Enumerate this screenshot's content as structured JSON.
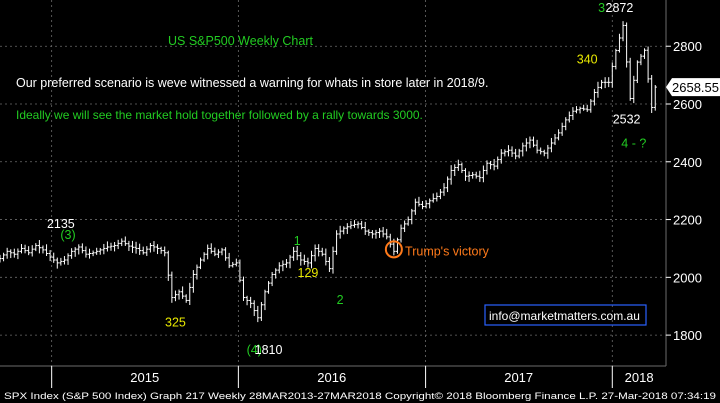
{
  "chart_data": {
    "type": "ohlc",
    "title": "US S&P500 Weekly Chart",
    "notes": [
      "Our preferred scenario is weve witnessed a warning for whats in store later in 2018/9.",
      "Ideally we will see the market hold together followed by a rally towards 3000."
    ],
    "y_ticks": [
      1800,
      2000,
      2200,
      2400,
      2600,
      2800
    ],
    "ylim": [
      1700,
      2960
    ],
    "x_labels": [
      "2015",
      "2016",
      "2017",
      "2018"
    ],
    "xlim": [
      "2014-09-22",
      "2018-04-16"
    ],
    "last_price": "2658.55",
    "series": [
      {
        "name": "SPX Index",
        "points": [
          {
            "x": "2014-09-22",
            "y": 2065
          },
          {
            "x": "2014-10-06",
            "y": 2090
          },
          {
            "x": "2014-10-20",
            "y": 2080
          },
          {
            "x": "2014-11-03",
            "y": 2100
          },
          {
            "x": "2014-11-17",
            "y": 2085
          },
          {
            "x": "2014-12-01",
            "y": 2110
          },
          {
            "x": "2014-12-15",
            "y": 2095
          },
          {
            "x": "2014-12-29",
            "y": 2070
          },
          {
            "x": "2015-01-12",
            "y": 2050
          },
          {
            "x": "2015-01-26",
            "y": 2060
          },
          {
            "x": "2015-02-09",
            "y": 2090
          },
          {
            "x": "2015-02-23",
            "y": 2105
          },
          {
            "x": "2015-03-09",
            "y": 2080
          },
          {
            "x": "2015-03-23",
            "y": 2085
          },
          {
            "x": "2015-04-06",
            "y": 2095
          },
          {
            "x": "2015-04-20",
            "y": 2105
          },
          {
            "x": "2015-05-04",
            "y": 2110
          },
          {
            "x": "2015-05-18",
            "y": 2125
          },
          {
            "x": "2015-06-01",
            "y": 2108
          },
          {
            "x": "2015-06-15",
            "y": 2100
          },
          {
            "x": "2015-06-29",
            "y": 2085
          },
          {
            "x": "2015-07-13",
            "y": 2110
          },
          {
            "x": "2015-07-27",
            "y": 2100
          },
          {
            "x": "2015-08-10",
            "y": 2085
          },
          {
            "x": "2015-08-24",
            "y": 1930
          },
          {
            "x": "2015-09-07",
            "y": 1950
          },
          {
            "x": "2015-09-21",
            "y": 1920
          },
          {
            "x": "2015-10-05",
            "y": 2010
          },
          {
            "x": "2015-10-19",
            "y": 2060
          },
          {
            "x": "2015-11-02",
            "y": 2100
          },
          {
            "x": "2015-11-16",
            "y": 2080
          },
          {
            "x": "2015-11-30",
            "y": 2095
          },
          {
            "x": "2015-12-14",
            "y": 2040
          },
          {
            "x": "2015-12-28",
            "y": 2050
          },
          {
            "x": "2016-01-11",
            "y": 1930
          },
          {
            "x": "2016-01-25",
            "y": 1910
          },
          {
            "x": "2016-02-08",
            "y": 1860
          },
          {
            "x": "2016-02-22",
            "y": 1950
          },
          {
            "x": "2016-03-07",
            "y": 2010
          },
          {
            "x": "2016-03-21",
            "y": 2040
          },
          {
            "x": "2016-04-04",
            "y": 2050
          },
          {
            "x": "2016-04-18",
            "y": 2090
          },
          {
            "x": "2016-05-02",
            "y": 2060
          },
          {
            "x": "2016-05-16",
            "y": 2050
          },
          {
            "x": "2016-05-30",
            "y": 2100
          },
          {
            "x": "2016-06-13",
            "y": 2080
          },
          {
            "x": "2016-06-27",
            "y": 2030
          },
          {
            "x": "2016-07-11",
            "y": 2150
          },
          {
            "x": "2016-07-25",
            "y": 2170
          },
          {
            "x": "2016-08-08",
            "y": 2180
          },
          {
            "x": "2016-08-22",
            "y": 2185
          },
          {
            "x": "2016-09-05",
            "y": 2160
          },
          {
            "x": "2016-09-19",
            "y": 2150
          },
          {
            "x": "2016-10-03",
            "y": 2160
          },
          {
            "x": "2016-10-17",
            "y": 2140
          },
          {
            "x": "2016-10-31",
            "y": 2090
          },
          {
            "x": "2016-11-14",
            "y": 2170
          },
          {
            "x": "2016-11-28",
            "y": 2200
          },
          {
            "x": "2016-12-12",
            "y": 2260
          },
          {
            "x": "2016-12-26",
            "y": 2245
          },
          {
            "x": "2017-01-09",
            "y": 2265
          },
          {
            "x": "2017-01-23",
            "y": 2280
          },
          {
            "x": "2017-02-06",
            "y": 2310
          },
          {
            "x": "2017-02-20",
            "y": 2370
          },
          {
            "x": "2017-03-06",
            "y": 2390
          },
          {
            "x": "2017-03-20",
            "y": 2350
          },
          {
            "x": "2017-04-03",
            "y": 2355
          },
          {
            "x": "2017-04-17",
            "y": 2345
          },
          {
            "x": "2017-05-01",
            "y": 2395
          },
          {
            "x": "2017-05-15",
            "y": 2385
          },
          {
            "x": "2017-05-29",
            "y": 2430
          },
          {
            "x": "2017-06-12",
            "y": 2440
          },
          {
            "x": "2017-06-26",
            "y": 2420
          },
          {
            "x": "2017-07-10",
            "y": 2455
          },
          {
            "x": "2017-07-24",
            "y": 2475
          },
          {
            "x": "2017-08-07",
            "y": 2440
          },
          {
            "x": "2017-08-21",
            "y": 2430
          },
          {
            "x": "2017-09-04",
            "y": 2465
          },
          {
            "x": "2017-09-18",
            "y": 2500
          },
          {
            "x": "2017-10-02",
            "y": 2545
          },
          {
            "x": "2017-10-16",
            "y": 2575
          },
          {
            "x": "2017-10-30",
            "y": 2585
          },
          {
            "x": "2017-11-13",
            "y": 2580
          },
          {
            "x": "2017-11-27",
            "y": 2640
          },
          {
            "x": "2017-12-11",
            "y": 2675
          },
          {
            "x": "2017-12-25",
            "y": 2675
          },
          {
            "x": "2018-01-08",
            "y": 2785
          },
          {
            "x": "2018-01-22",
            "y": 2872
          },
          {
            "x": "2018-02-05",
            "y": 2619
          },
          {
            "x": "2018-02-19",
            "y": 2745
          },
          {
            "x": "2018-03-05",
            "y": 2786
          },
          {
            "x": "2018-03-19",
            "y": 2588
          },
          {
            "x": "2018-03-26",
            "y": 2658.55
          }
        ]
      }
    ],
    "annotations": [
      {
        "text": "2135",
        "color": "#ffffff",
        "x": "2015-01-19",
        "y": 2170
      },
      {
        "text": "(3)",
        "color": "#22cc22",
        "x": "2015-02-02",
        "y": 2133
      },
      {
        "text": "325",
        "color": "#e8e800",
        "x": "2015-08-31",
        "y": 1830
      },
      {
        "text": "(4)",
        "color": "#22cc22",
        "x": "2016-02-01",
        "y": 1735
      },
      {
        "text": "1810",
        "color": "#ffffff",
        "x": "2016-02-29",
        "y": 1735
      },
      {
        "text": "129",
        "color": "#e8e800",
        "x": "2016-05-16",
        "y": 2002
      },
      {
        "text": "1",
        "color": "#22cc22",
        "x": "2016-04-25",
        "y": 2112
      },
      {
        "text": "2",
        "color": "#22cc22",
        "x": "2016-07-18",
        "y": 1908
      },
      {
        "text": "Trump's victory",
        "color": "#ff7a1a",
        "x": "2016-11-14",
        "y": 2075
      },
      {
        "text": "340",
        "color": "#e8e800",
        "x": "2017-11-13",
        "y": 2740
      },
      {
        "text": "3",
        "color": "#22cc22",
        "x": "2017-12-11",
        "y": 2918
      },
      {
        "text": "2872",
        "color": "#ffffff",
        "x": "2018-01-15",
        "y": 2918
      },
      {
        "text": "2532",
        "color": "#ffffff",
        "x": "2018-01-29",
        "y": 2532
      },
      {
        "text": "4 - ?",
        "color": "#22cc22",
        "x": "2018-02-12",
        "y": 2450
      }
    ],
    "markers": [
      {
        "type": "circle",
        "color": "#ff7a1a",
        "x": "2016-10-31",
        "y": 2090
      }
    ],
    "grid": true,
    "legend": "none"
  },
  "watermark": "info@marketmatters.com.au",
  "footer": "SPX Index (S&P 500 Index) Graph 217  Weekly 28MAR2013-27MAR2018  Copyright© 2018 Bloomberg Finance L.P.   27-Mar-2018 07:34:19",
  "colors": {
    "background": "#000000",
    "bars": "#ffffff",
    "grid": "#6b6b6b",
    "title": "#22cc22",
    "note1": "#ffffff",
    "note2": "#22cc22",
    "price_tag": "#ffffff",
    "watermark_border": "#2a62ff"
  }
}
